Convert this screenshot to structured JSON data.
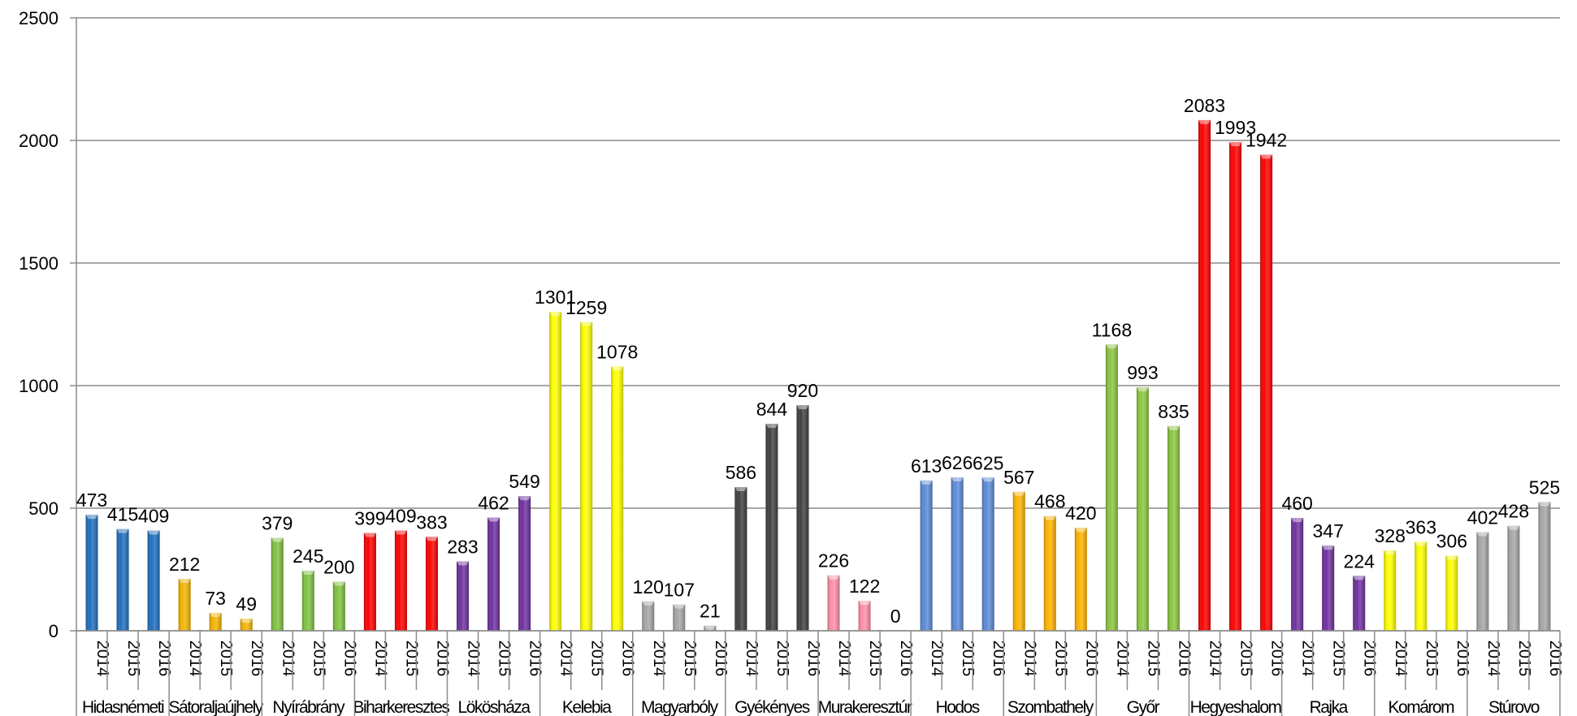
{
  "chart_data": {
    "type": "bar",
    "title": "",
    "xlabel": "",
    "ylabel": "",
    "ylim": [
      0,
      2500
    ],
    "yticks": [
      0,
      500,
      1000,
      1500,
      2000,
      2500
    ],
    "grid": true,
    "legend": "none",
    "years": [
      "2014",
      "2015",
      "2016"
    ],
    "groups": [
      {
        "name": "Hidasnémeti",
        "color": "#1f6fbf",
        "values": [
          473,
          415,
          409
        ]
      },
      {
        "name": "Sátoraljaújhely",
        "color": "#f5b400",
        "values": [
          212,
          73,
          49
        ]
      },
      {
        "name": "Nyírábrány",
        "color": "#7fc241",
        "values": [
          379,
          245,
          200
        ]
      },
      {
        "name": "Biharkeresztes",
        "color": "#ff0000",
        "values": [
          399,
          409,
          383
        ]
      },
      {
        "name": "Lökösháza",
        "color": "#7030a0",
        "values": [
          283,
          462,
          549
        ]
      },
      {
        "name": "Kelebia",
        "color": "#ffff00",
        "values": [
          1301,
          1259,
          1078
        ]
      },
      {
        "name": "Magyarbóly",
        "color": "#a6a6a6",
        "values": [
          120,
          107,
          21
        ]
      },
      {
        "name": "Gyékényes",
        "color": "#404040",
        "values": [
          586,
          844,
          920
        ]
      },
      {
        "name": "Murakeresztúr",
        "color": "#ff8fa8",
        "values": [
          226,
          122,
          0
        ]
      },
      {
        "name": "Hodos",
        "color": "#5b8ad8",
        "values": [
          613,
          626,
          625
        ]
      },
      {
        "name": "Szombathely",
        "color": "#ffb300",
        "values": [
          567,
          468,
          420
        ]
      },
      {
        "name": "Győr",
        "color": "#8cc63f",
        "values": [
          1168,
          993,
          835
        ]
      },
      {
        "name": "Hegyeshalom",
        "color": "#ff0000",
        "values": [
          2083,
          1993,
          1942
        ]
      },
      {
        "name": "Rajka",
        "color": "#7030a0",
        "values": [
          460,
          347,
          224
        ]
      },
      {
        "name": "Komárom",
        "color": "#ffff00",
        "values": [
          328,
          363,
          306
        ]
      },
      {
        "name": "Stúrovo",
        "color": "#a6a6a6",
        "values": [
          402,
          428,
          525
        ]
      }
    ]
  }
}
